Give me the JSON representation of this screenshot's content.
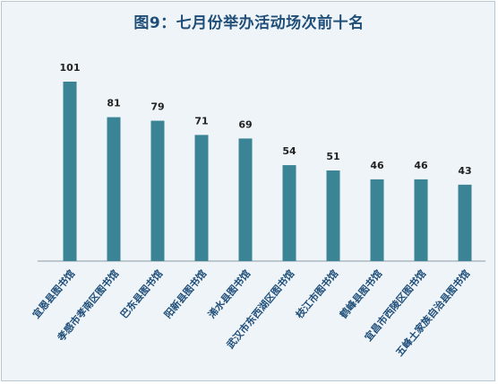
{
  "chart_data": {
    "type": "bar",
    "title": "图9：七月份举办活动场次前十名",
    "categories": [
      "宜恩县图书馆",
      "孝感市孝南区图书馆",
      "巴东县图书馆",
      "阳新县图书馆",
      "浠水县图书馆",
      "武汉市东西湖区图书馆",
      "枝江市图书馆",
      "鹤峰县图书馆",
      "宜昌市西陵区图书馆",
      "五峰土家族自治县图书馆"
    ],
    "values": [
      101,
      81,
      79,
      71,
      69,
      54,
      51,
      46,
      46,
      43
    ],
    "ylim": [
      0,
      101
    ],
    "grid": false,
    "legend": "none",
    "bar_color": "#3a8495"
  }
}
